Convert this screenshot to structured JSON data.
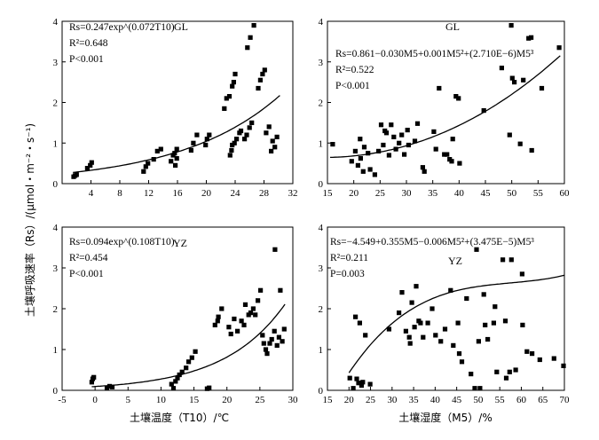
{
  "figure": {
    "ylabel": "土壤呼吸速率（Rs）/(μmol・m⁻²・s⁻¹)",
    "xlabel_left": "土壤温度（T10）/℃",
    "xlabel_right": "土壤湿度（M5）/%"
  },
  "chart_data": [
    {
      "id": "gl_temp",
      "type": "scatter",
      "site": "GL",
      "equation": "Rs=0.247exp^(0.072T10)",
      "r2": "R²=0.648",
      "p": "P<0.001",
      "xlim": [
        0,
        32
      ],
      "ylim": [
        0,
        4
      ],
      "xticks": [
        4,
        8,
        12,
        16,
        20,
        24,
        28,
        32
      ],
      "yticks": [
        0,
        1,
        2,
        3,
        4
      ],
      "fit": {
        "kind": "exp",
        "a": 0.247,
        "b": 0.072,
        "x0": 1.5,
        "x1": 30.2
      },
      "points": [
        [
          1.6,
          0.17
        ],
        [
          1.8,
          0.2
        ],
        [
          2.0,
          0.22
        ],
        [
          3.5,
          0.38
        ],
        [
          3.9,
          0.45
        ],
        [
          4.1,
          0.52
        ],
        [
          11.3,
          0.3
        ],
        [
          11.6,
          0.42
        ],
        [
          11.9,
          0.5
        ],
        [
          12.7,
          0.6
        ],
        [
          13.2,
          0.8
        ],
        [
          13.7,
          0.85
        ],
        [
          15.1,
          0.55
        ],
        [
          15.4,
          0.7
        ],
        [
          15.6,
          0.75
        ],
        [
          15.7,
          0.45
        ],
        [
          15.9,
          0.62
        ],
        [
          15.9,
          0.85
        ],
        [
          17.9,
          0.82
        ],
        [
          18.2,
          1.0
        ],
        [
          18.7,
          1.2
        ],
        [
          19.9,
          0.95
        ],
        [
          20.1,
          1.1
        ],
        [
          20.4,
          1.2
        ],
        [
          22.5,
          1.85
        ],
        [
          22.8,
          2.1
        ],
        [
          23.2,
          2.15
        ],
        [
          23.6,
          2.4
        ],
        [
          23.8,
          2.5
        ],
        [
          24.0,
          2.7
        ],
        [
          23.3,
          0.7
        ],
        [
          23.5,
          0.82
        ],
        [
          23.6,
          0.95
        ],
        [
          23.9,
          1.0
        ],
        [
          24.2,
          1.1
        ],
        [
          24.6,
          1.25
        ],
        [
          24.8,
          1.3
        ],
        [
          25.3,
          1.1
        ],
        [
          25.6,
          1.2
        ],
        [
          26.0,
          1.38
        ],
        [
          26.3,
          1.5
        ],
        [
          25.7,
          3.35
        ],
        [
          26.1,
          3.6
        ],
        [
          26.6,
          3.9
        ],
        [
          27.2,
          2.35
        ],
        [
          27.5,
          2.55
        ],
        [
          27.8,
          2.7
        ],
        [
          28.1,
          2.8
        ],
        [
          28.3,
          1.25
        ],
        [
          28.7,
          1.4
        ],
        [
          29.0,
          0.8
        ],
        [
          29.2,
          1.05
        ],
        [
          29.5,
          0.9
        ],
        [
          29.8,
          1.15
        ]
      ]
    },
    {
      "id": "gl_moist",
      "type": "scatter",
      "site": "GL",
      "equation": "Rs=0.861−0.030M5+0.001M5²+(2.710E−6)M5³",
      "r2": "R²=0.522",
      "p": "P<0.001",
      "xlim": [
        15,
        60
      ],
      "ylim": [
        0,
        4
      ],
      "xticks": [
        15,
        20,
        25,
        30,
        35,
        40,
        45,
        50,
        55,
        60
      ],
      "yticks": [
        0,
        1,
        2,
        3,
        4
      ],
      "fit": {
        "kind": "poly",
        "c": [
          0.861,
          -0.03,
          0.001,
          2.71e-06
        ],
        "x0": 15.5,
        "x1": 59.2
      },
      "points": [
        [
          16.0,
          0.97
        ],
        [
          19.6,
          0.55
        ],
        [
          20.3,
          0.8
        ],
        [
          20.8,
          0.45
        ],
        [
          21.3,
          0.62
        ],
        [
          21.2,
          1.1
        ],
        [
          21.8,
          0.3
        ],
        [
          22.0,
          0.9
        ],
        [
          22.7,
          0.75
        ],
        [
          23.1,
          0.35
        ],
        [
          24.0,
          0.22
        ],
        [
          24.7,
          0.8
        ],
        [
          25.2,
          1.45
        ],
        [
          25.6,
          0.95
        ],
        [
          25.9,
          1.3
        ],
        [
          26.2,
          1.25
        ],
        [
          26.7,
          0.7
        ],
        [
          27.1,
          1.45
        ],
        [
          27.6,
          1.15
        ],
        [
          28.0,
          0.85
        ],
        [
          28.6,
          1.0
        ],
        [
          29.1,
          1.2
        ],
        [
          29.6,
          0.72
        ],
        [
          30.2,
          1.32
        ],
        [
          30.4,
          0.95
        ],
        [
          31.6,
          1.05
        ],
        [
          32.1,
          1.48
        ],
        [
          33.1,
          0.4
        ],
        [
          33.4,
          0.3
        ],
        [
          35.2,
          1.28
        ],
        [
          35.6,
          0.85
        ],
        [
          36.2,
          2.35
        ],
        [
          37.2,
          0.72
        ],
        [
          37.7,
          0.72
        ],
        [
          38.2,
          0.6
        ],
        [
          38.6,
          0.55
        ],
        [
          38.8,
          1.1
        ],
        [
          39.4,
          2.15
        ],
        [
          39.9,
          2.1
        ],
        [
          40.1,
          0.5
        ],
        [
          44.7,
          1.8
        ],
        [
          48.1,
          2.85
        ],
        [
          49.6,
          1.2
        ],
        [
          49.9,
          3.9
        ],
        [
          50.1,
          2.6
        ],
        [
          50.5,
          2.5
        ],
        [
          51.6,
          0.98
        ],
        [
          52.2,
          2.55
        ],
        [
          53.2,
          3.58
        ],
        [
          53.7,
          3.6
        ],
        [
          53.8,
          0.82
        ],
        [
          55.7,
          2.35
        ],
        [
          59.0,
          3.35
        ]
      ]
    },
    {
      "id": "yz_temp",
      "type": "scatter",
      "site": "YZ",
      "equation": "Rs=0.094exp^(0.108T10)",
      "r2": "R²=0.454",
      "p": "P<0.001",
      "xlim": [
        -5,
        30
      ],
      "ylim": [
        0,
        4
      ],
      "xticks": [
        -5,
        0,
        5,
        10,
        15,
        20,
        25,
        30
      ],
      "yticks": [
        0,
        1,
        2,
        3,
        4
      ],
      "fit": {
        "kind": "exp",
        "a": 0.094,
        "b": 0.108,
        "x0": -0.5,
        "x1": 28.8
      },
      "points": [
        [
          -0.5,
          0.2
        ],
        [
          -0.35,
          0.28
        ],
        [
          -0.2,
          0.32
        ],
        [
          1.8,
          0.05
        ],
        [
          2.2,
          0.1
        ],
        [
          2.6,
          0.08
        ],
        [
          11.6,
          0.15
        ],
        [
          11.9,
          0.05
        ],
        [
          12.2,
          0.22
        ],
        [
          12.5,
          0.3
        ],
        [
          12.8,
          0.38
        ],
        [
          13.2,
          0.45
        ],
        [
          13.8,
          0.55
        ],
        [
          14.2,
          0.7
        ],
        [
          14.7,
          0.8
        ],
        [
          15.2,
          0.95
        ],
        [
          17.0,
          0.04
        ],
        [
          17.3,
          0.06
        ],
        [
          18.2,
          1.6
        ],
        [
          18.6,
          1.7
        ],
        [
          18.7,
          1.8
        ],
        [
          19.2,
          2.0
        ],
        [
          20.3,
          1.55
        ],
        [
          20.6,
          1.38
        ],
        [
          21.1,
          1.75
        ],
        [
          21.6,
          1.45
        ],
        [
          22.2,
          1.7
        ],
        [
          22.6,
          1.6
        ],
        [
          22.8,
          2.1
        ],
        [
          23.3,
          1.85
        ],
        [
          23.6,
          1.9
        ],
        [
          24.0,
          2.0
        ],
        [
          24.3,
          1.85
        ],
        [
          24.7,
          2.2
        ],
        [
          25.1,
          2.45
        ],
        [
          25.4,
          1.35
        ],
        [
          25.6,
          1.15
        ],
        [
          25.9,
          1.0
        ],
        [
          26.1,
          0.9
        ],
        [
          26.5,
          1.15
        ],
        [
          26.8,
          1.25
        ],
        [
          27.2,
          1.45
        ],
        [
          27.3,
          3.45
        ],
        [
          27.6,
          1.1
        ],
        [
          27.9,
          1.3
        ],
        [
          28.1,
          2.45
        ],
        [
          28.4,
          1.2
        ],
        [
          28.7,
          1.5
        ]
      ]
    },
    {
      "id": "yz_moist",
      "type": "scatter",
      "site": "YZ",
      "equation": "Rs=−4.549+0.355M5−0.006M5²+(3.475E−5)M5³",
      "r2": "R²=0.211",
      "p": "P=0.003",
      "xlim": [
        15,
        70
      ],
      "ylim": [
        0,
        4
      ],
      "xticks": [
        15,
        20,
        25,
        30,
        35,
        40,
        45,
        50,
        55,
        60,
        65,
        70
      ],
      "yticks": [
        0,
        1,
        2,
        3,
        4
      ],
      "fit": {
        "kind": "poly",
        "c": [
          -4.549,
          0.355,
          -0.006,
          3.475e-05
        ],
        "x0": 20.0,
        "x1": 70.0
      },
      "points": [
        [
          20.2,
          0.3
        ],
        [
          21.0,
          0.05
        ],
        [
          21.5,
          1.8
        ],
        [
          21.8,
          0.28
        ],
        [
          22.2,
          0.18
        ],
        [
          22.5,
          1.65
        ],
        [
          22.9,
          0.12
        ],
        [
          23.2,
          0.2
        ],
        [
          23.8,
          1.35
        ],
        [
          24.9,
          0.15
        ],
        [
          29.3,
          1.5
        ],
        [
          31.6,
          1.9
        ],
        [
          32.3,
          2.4
        ],
        [
          33.2,
          1.45
        ],
        [
          34.0,
          1.3
        ],
        [
          34.2,
          1.15
        ],
        [
          34.6,
          2.15
        ],
        [
          35.2,
          1.55
        ],
        [
          35.6,
          2.55
        ],
        [
          36.2,
          1.7
        ],
        [
          36.6,
          1.65
        ],
        [
          37.2,
          1.3
        ],
        [
          38.3,
          1.65
        ],
        [
          39.3,
          2.0
        ],
        [
          40.1,
          1.35
        ],
        [
          41.3,
          1.2
        ],
        [
          42.3,
          1.5
        ],
        [
          43.6,
          2.45
        ],
        [
          44.2,
          1.1
        ],
        [
          45.3,
          1.65
        ],
        [
          45.6,
          0.9
        ],
        [
          46.2,
          0.7
        ],
        [
          47.3,
          2.25
        ],
        [
          48.3,
          0.4
        ],
        [
          49.2,
          0.05
        ],
        [
          49.6,
          3.45
        ],
        [
          50.1,
          1.2
        ],
        [
          50.4,
          0.05
        ],
        [
          51.3,
          2.35
        ],
        [
          51.6,
          1.6
        ],
        [
          52.2,
          1.25
        ],
        [
          53.6,
          1.65
        ],
        [
          53.9,
          2.05
        ],
        [
          54.3,
          0.45
        ],
        [
          55.7,
          3.2
        ],
        [
          56.3,
          1.7
        ],
        [
          56.5,
          0.3
        ],
        [
          57.3,
          0.45
        ],
        [
          57.7,
          3.2
        ],
        [
          58.7,
          0.5
        ],
        [
          60.2,
          2.85
        ],
        [
          60.3,
          1.6
        ],
        [
          61.3,
          0.95
        ],
        [
          62.5,
          0.9
        ],
        [
          64.3,
          0.75
        ],
        [
          67.6,
          0.78
        ],
        [
          69.8,
          0.6
        ]
      ]
    }
  ]
}
